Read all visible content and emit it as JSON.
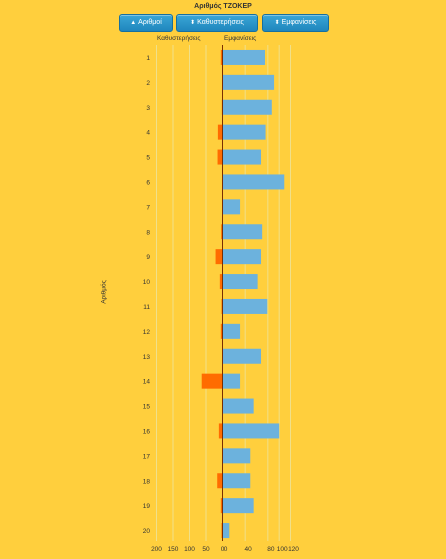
{
  "header": {
    "title": "Αριθμός ΤΖΟΚΕΡ",
    "buttons": [
      {
        "label": "Αριθμοί",
        "arrow": "▲"
      },
      {
        "label": "Καθυστερήσεις",
        "arrow": "⬍"
      },
      {
        "label": "Εμφανίσεις",
        "arrow": "⬍"
      }
    ]
  },
  "colors": {
    "background": "#ffcf3d",
    "delays": "#ff6c00",
    "appearances": "#6cb2dd",
    "axis": "#7a2e00",
    "grid": "#f0e08a"
  },
  "chart_data": {
    "type": "bar",
    "orientation": "horizontal",
    "title": "Αριθμός ΤΖΟΚΕΡ",
    "ylabel": "Αριθμός",
    "categories": [
      "1",
      "2",
      "3",
      "4",
      "5",
      "6",
      "7",
      "8",
      "9",
      "10",
      "11",
      "12",
      "13",
      "14",
      "15",
      "16",
      "17",
      "18",
      "19",
      "20"
    ],
    "series": [
      {
        "name": "Καθυστερήσεις",
        "direction": "left",
        "xlim": [
          0,
          200
        ],
        "values": [
          5,
          0,
          2,
          14,
          15,
          1,
          0,
          4,
          21,
          8,
          3,
          5,
          1,
          63,
          0,
          11,
          1,
          16,
          5,
          3
        ]
      },
      {
        "name": "Εμφανίσεις",
        "direction": "right",
        "xlim": [
          0,
          120
        ],
        "values": [
          75,
          91,
          87,
          76,
          68,
          109,
          31,
          70,
          68,
          62,
          79,
          31,
          68,
          31,
          55,
          100,
          49,
          49,
          55,
          12
        ]
      }
    ],
    "left_ticks": [
      "200",
      "150",
      "100",
      "50",
      "0"
    ],
    "right_ticks": [
      "0",
      "40",
      "80",
      "100",
      "120"
    ],
    "grid": true
  }
}
